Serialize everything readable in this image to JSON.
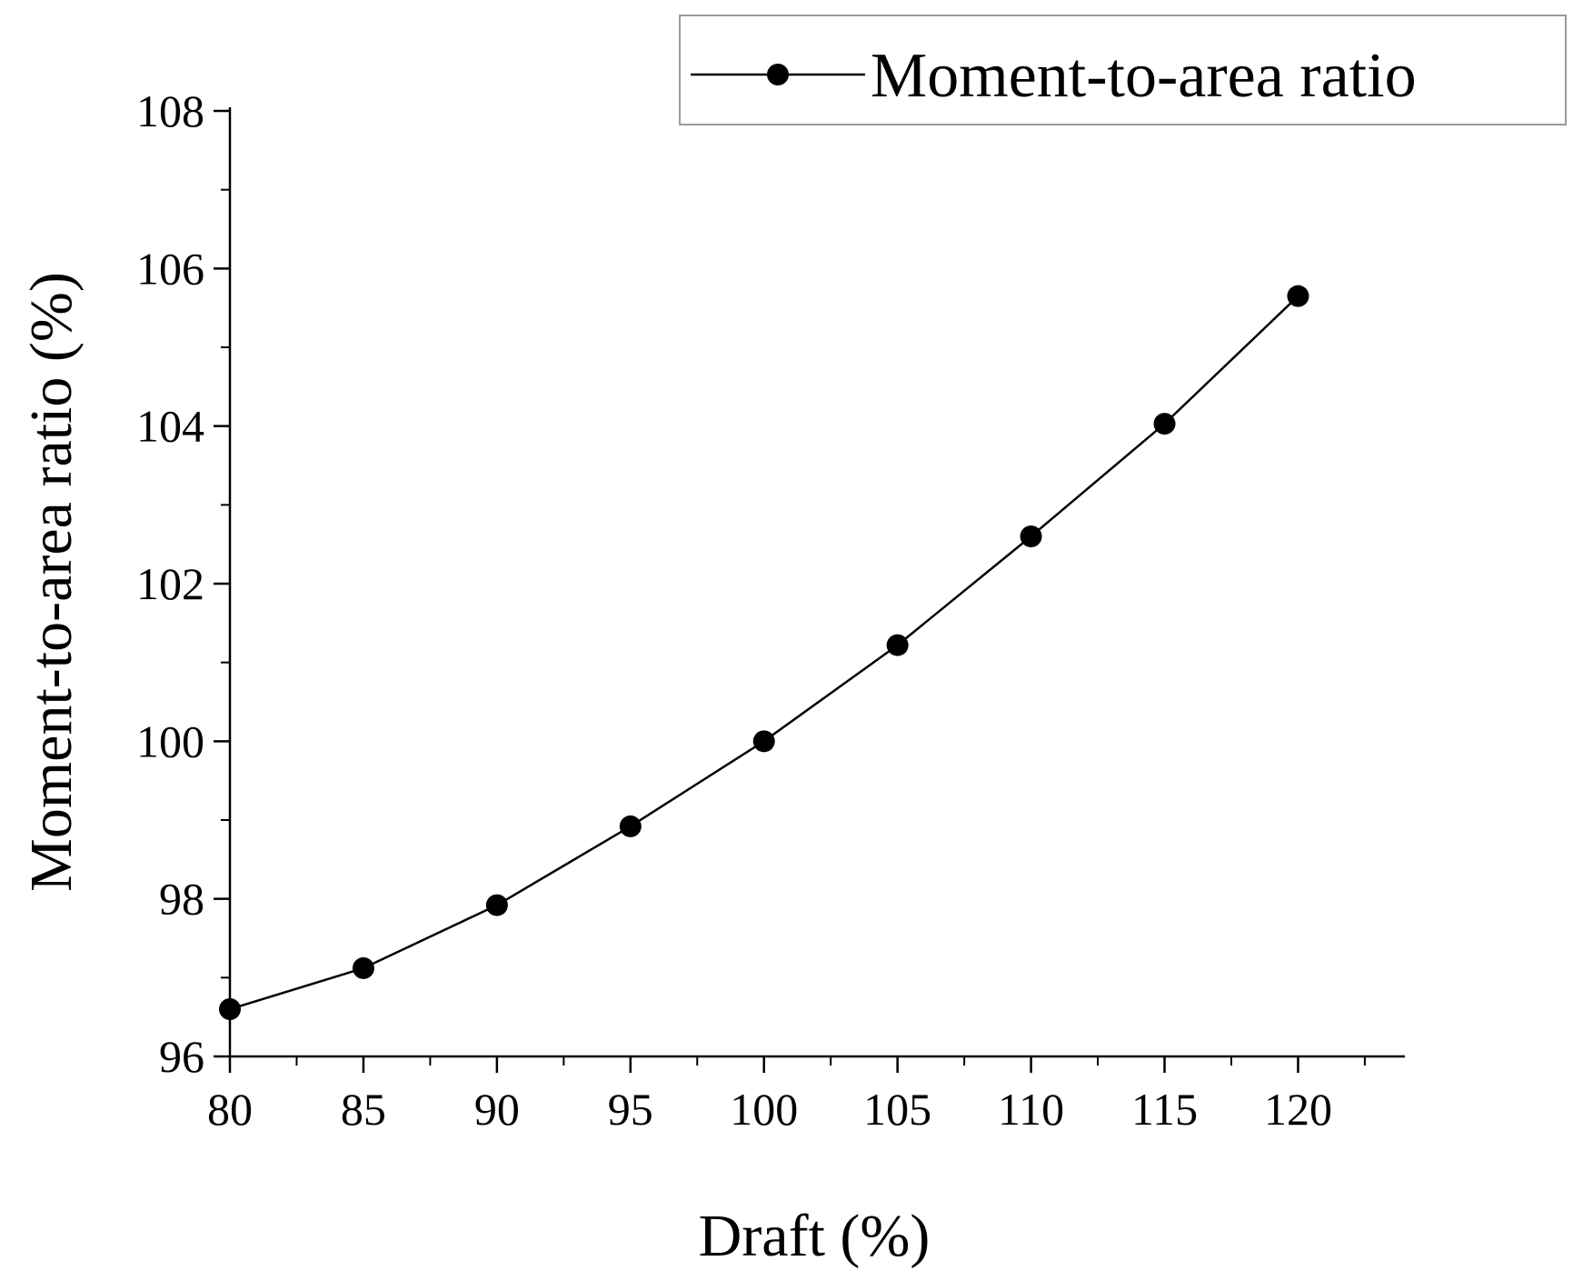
{
  "chart_data": {
    "type": "line",
    "title": "",
    "xlabel": "Draft (%)",
    "ylabel": "Moment-to-area ratio (%)",
    "xlim": [
      80,
      124
    ],
    "ylim": [
      96,
      108
    ],
    "xticks": [
      80,
      85,
      90,
      95,
      100,
      105,
      110,
      115,
      120
    ],
    "yticks": [
      96,
      98,
      100,
      102,
      104,
      106,
      108
    ],
    "grid": false,
    "legend_position": "top-right",
    "series": [
      {
        "name": "Moment-to-area ratio",
        "color": "#000000",
        "marker": "circle",
        "x": [
          80,
          85,
          90,
          95,
          100,
          105,
          110,
          115,
          120
        ],
        "y": [
          96.6,
          97.12,
          97.92,
          98.92,
          100.0,
          101.22,
          102.6,
          104.03,
          105.65
        ]
      }
    ]
  }
}
